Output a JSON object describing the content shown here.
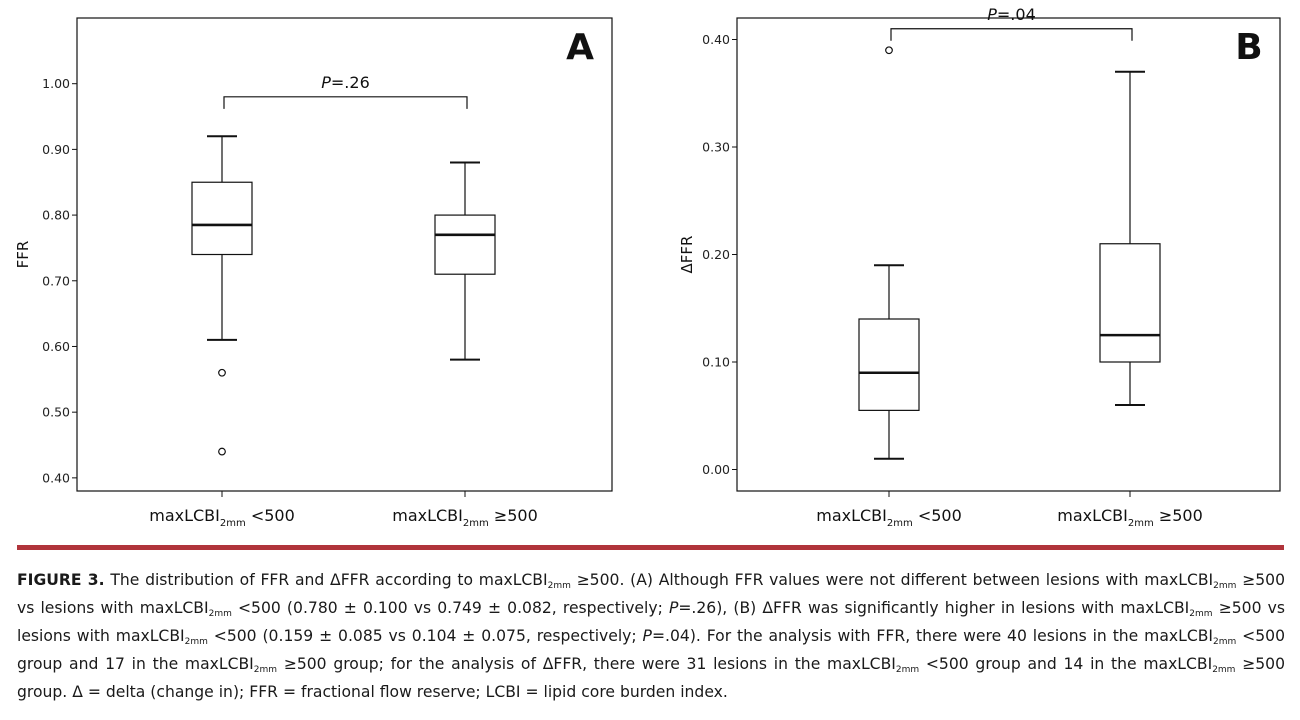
{
  "chart_data": [
    {
      "type": "box",
      "panel_label": "A",
      "ylabel": "FFR",
      "ylim": [
        0.38,
        1.1
      ],
      "yticks": [
        "0.40",
        "0.50",
        "0.60",
        "0.70",
        "0.80",
        "0.90",
        "1.00"
      ],
      "categories": [
        {
          "label": "maxLCBI",
          "sub": "2mm",
          "suffix": " <500"
        },
        {
          "label": "maxLCBI",
          "sub": "2mm",
          "suffix": " ≥500"
        }
      ],
      "boxes": [
        {
          "whisker_low": 0.61,
          "q1": 0.74,
          "median": 0.785,
          "q3": 0.85,
          "whisker_high": 0.92,
          "outliers": [
            0.56,
            0.44
          ]
        },
        {
          "whisker_low": 0.58,
          "q1": 0.71,
          "median": 0.77,
          "q3": 0.8,
          "whisker_high": 0.88,
          "outliers": []
        }
      ],
      "p_value": {
        "symbol": "P",
        "text": "=.26",
        "y": 0.98
      }
    },
    {
      "type": "box",
      "panel_label": "B",
      "ylabel": "ΔFFR",
      "ylim": [
        -0.02,
        0.42
      ],
      "yticks": [
        "0.00",
        "0.10",
        "0.20",
        "0.30",
        "0.40"
      ],
      "categories": [
        {
          "label": "maxLCBI",
          "sub": "2mm",
          "suffix": " <500"
        },
        {
          "label": "maxLCBI",
          "sub": "2mm",
          "suffix": " ≥500"
        }
      ],
      "boxes": [
        {
          "whisker_low": 0.01,
          "q1": 0.055,
          "median": 0.09,
          "q3": 0.14,
          "whisker_high": 0.19,
          "outliers": [
            0.39
          ]
        },
        {
          "whisker_low": 0.06,
          "q1": 0.1,
          "median": 0.125,
          "q3": 0.21,
          "whisker_high": 0.37,
          "outliers": []
        }
      ],
      "p_value": {
        "symbol": "P",
        "text": "=.04",
        "y": 0.41
      }
    }
  ],
  "colors": {
    "rule": "#b0343b",
    "ink": "#111111"
  },
  "caption": {
    "lead": "FIGURE 3.",
    "segments": [
      {
        "t": " The distribution of FFR and ΔFFR according to maxLCBI"
      },
      {
        "sub": "2mm"
      },
      {
        "t": " ≥500. (A) Although FFR values were not different between lesions with maxLCBI"
      },
      {
        "sub": "2mm"
      },
      {
        "t": " ≥500 vs lesions with maxLCBI"
      },
      {
        "sub": "2mm"
      },
      {
        "t": " <500 (0.780 ± 0.100 vs 0.749 ± 0.082, respectively; "
      },
      {
        "i": "P"
      },
      {
        "t": "=.26), (B) ΔFFR was significantly higher in lesions with maxLCBI"
      },
      {
        "sub": "2mm"
      },
      {
        "t": " ≥500 vs lesions with maxLCBI"
      },
      {
        "sub": "2mm"
      },
      {
        "t": " <500 (0.159 ± 0.085 vs 0.104 ± 0.075, respectively; "
      },
      {
        "i": "P"
      },
      {
        "t": "=.04). For the analysis with FFR, there were 40 lesions in the maxLCBI"
      },
      {
        "sub": "2mm"
      },
      {
        "t": " <500 group and 17 in the maxLCBI"
      },
      {
        "sub": "2mm"
      },
      {
        "t": " ≥500 group; for the analysis of ΔFFR, there were 31 lesions in the maxLCBI"
      },
      {
        "sub": "2mm"
      },
      {
        "t": " <500 group and 14 in the maxLCBI"
      },
      {
        "sub": "2mm"
      },
      {
        "t": " ≥500 group. Δ = delta (change in); FFR = fractional flow reserve; LCBI = lipid core burden index."
      }
    ]
  }
}
